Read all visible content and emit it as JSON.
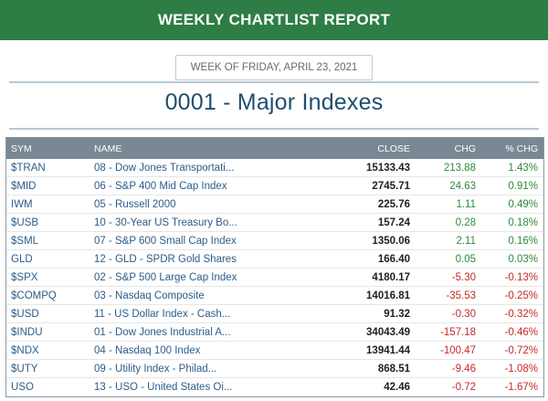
{
  "header": {
    "title": "WEEKLY CHARTLIST REPORT"
  },
  "week_label": "WEEK OF FRIDAY, APRIL 23, 2021",
  "section_title": "0001 - Major Indexes",
  "table": {
    "columns": [
      "SYM",
      "NAME",
      "CLOSE",
      "CHG",
      "% CHG"
    ],
    "rows": [
      {
        "sym": "$TRAN",
        "name": "08 - Dow Jones Transportati...",
        "close": "15133.43",
        "chg": "213.88",
        "pct": "1.43%",
        "dir": "pos"
      },
      {
        "sym": "$MID",
        "name": "06 - S&P 400 Mid Cap Index",
        "close": "2745.71",
        "chg": "24.63",
        "pct": "0.91%",
        "dir": "pos"
      },
      {
        "sym": "IWM",
        "name": "05 - Russell 2000",
        "close": "225.76",
        "chg": "1.11",
        "pct": "0.49%",
        "dir": "pos"
      },
      {
        "sym": "$USB",
        "name": "10 - 30-Year US Treasury Bo...",
        "close": "157.24",
        "chg": "0.28",
        "pct": "0.18%",
        "dir": "pos"
      },
      {
        "sym": "$SML",
        "name": "07 - S&P 600 Small Cap Index",
        "close": "1350.06",
        "chg": "2.11",
        "pct": "0.16%",
        "dir": "pos"
      },
      {
        "sym": "GLD",
        "name": "12 - GLD - SPDR Gold Shares",
        "close": "166.40",
        "chg": "0.05",
        "pct": "0.03%",
        "dir": "pos"
      },
      {
        "sym": "$SPX",
        "name": "02 - S&P 500 Large Cap Index",
        "close": "4180.17",
        "chg": "-5.30",
        "pct": "-0.13%",
        "dir": "neg"
      },
      {
        "sym": "$COMPQ",
        "name": "03 - Nasdaq Composite",
        "close": "14016.81",
        "chg": "-35.53",
        "pct": "-0.25%",
        "dir": "neg"
      },
      {
        "sym": "$USD",
        "name": "11 - US Dollar Index - Cash...",
        "close": "91.32",
        "chg": "-0.30",
        "pct": "-0.32%",
        "dir": "neg"
      },
      {
        "sym": "$INDU",
        "name": "01 - Dow Jones Industrial A...",
        "close": "34043.49",
        "chg": "-157.18",
        "pct": "-0.46%",
        "dir": "neg"
      },
      {
        "sym": "$NDX",
        "name": "04 - Nasdaq 100 Index",
        "close": "13941.44",
        "chg": "-100.47",
        "pct": "-0.72%",
        "dir": "neg"
      },
      {
        "sym": "$UTY",
        "name": "09 - Utility Index - Philad...",
        "close": "868.51",
        "chg": "-9.46",
        "pct": "-1.08%",
        "dir": "neg"
      },
      {
        "sym": "USO",
        "name": "13 - USO - United States Oi...",
        "close": "42.46",
        "chg": "-0.72",
        "pct": "-1.67%",
        "dir": "neg"
      }
    ]
  },
  "colors": {
    "banner": "#2e7d45",
    "title": "#1f4f6e",
    "link": "#2b5d8a",
    "positive": "#2e8b3a",
    "negative": "#c62828",
    "header_row": "#7a8794"
  }
}
